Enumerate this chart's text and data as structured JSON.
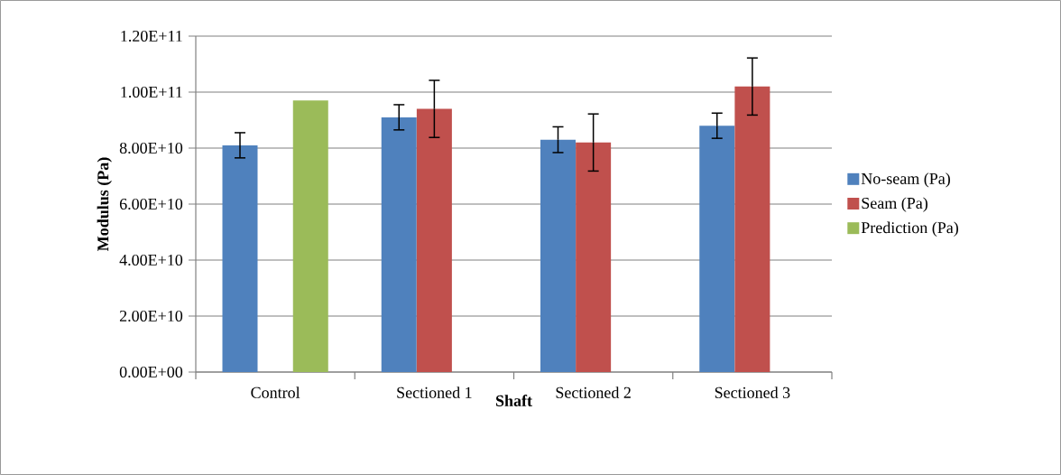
{
  "chart_data": {
    "type": "bar",
    "xlabel": "Shaft",
    "ylabel": "Modulus (Pa)",
    "categories": [
      "Control",
      "Sectioned 1",
      "Sectioned 2",
      "Sectioned 3"
    ],
    "series": [
      {
        "name": "No-seam (Pa)",
        "color": "#4f81bd",
        "values": [
          81000000000.0,
          91000000000.0,
          83000000000.0,
          88000000000.0
        ],
        "errors": [
          4500000000.0,
          4500000000.0,
          4600000000.0,
          4500000000.0
        ]
      },
      {
        "name": "Seam (Pa)",
        "color": "#c0504d",
        "values": [
          null,
          94000000000.0,
          82000000000.0,
          102000000000.0
        ],
        "errors": [
          null,
          10200000000.0,
          10200000000.0,
          10200000000.0
        ]
      },
      {
        "name": "Prediction (Pa)",
        "color": "#9bbb59",
        "values": [
          97000000000.0,
          null,
          null,
          null
        ]
      }
    ],
    "ylim": [
      0,
      120000000000.0
    ],
    "yticks": [
      {
        "value": 0,
        "label": "0.00E+00"
      },
      {
        "value": 20000000000.0,
        "label": "2.00E+10"
      },
      {
        "value": 40000000000.0,
        "label": "4.00E+10"
      },
      {
        "value": 60000000000.0,
        "label": "6.00E+10"
      },
      {
        "value": 80000000000.0,
        "label": "8.00E+10"
      },
      {
        "value": 100000000000.0,
        "label": "1.00E+11"
      },
      {
        "value": 120000000000.0,
        "label": "1.20E+11"
      }
    ],
    "grid": "y",
    "legend": "right"
  }
}
